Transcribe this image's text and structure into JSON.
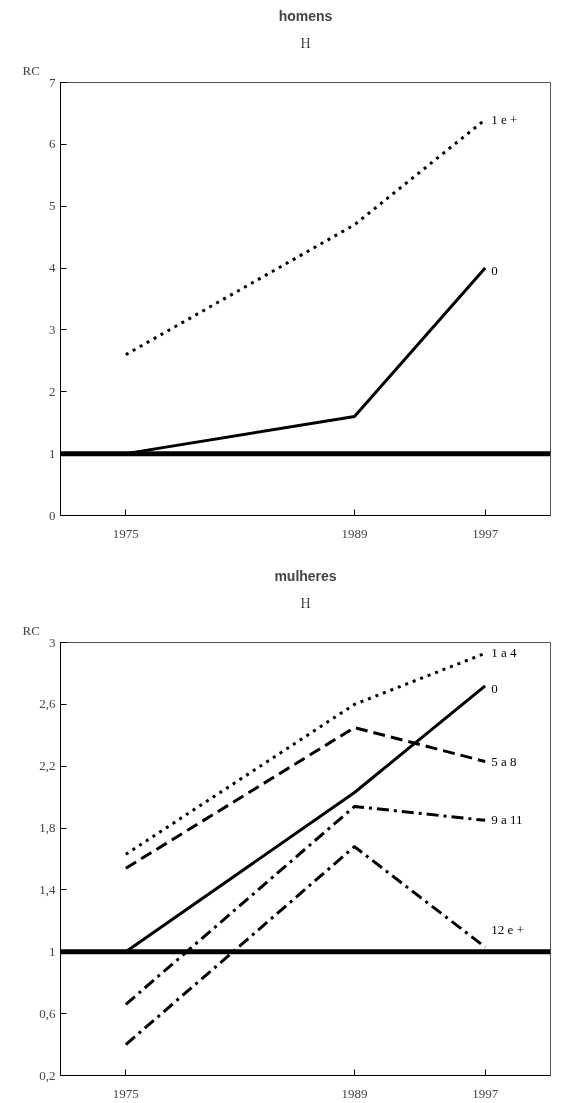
{
  "chart_data": [
    {
      "type": "line",
      "title": "homens",
      "subtitle": "H",
      "ylabel": "RC",
      "x": [
        1975,
        1989,
        1997
      ],
      "xlim": [
        1971,
        2001
      ],
      "xticks": [
        1975,
        1989,
        1997
      ],
      "ylim": [
        0,
        7
      ],
      "yticks": [
        0,
        1,
        2,
        3,
        4,
        5,
        6,
        7
      ],
      "series": [
        {
          "name": "1 e +",
          "color": "#000000",
          "line_style": "dotted",
          "values": [
            2.6,
            4.7,
            6.4
          ]
        },
        {
          "name": "0",
          "color": "#000000",
          "line_style": "solid",
          "values": [
            1.0,
            1.6,
            4.0
          ]
        }
      ],
      "ref_lines": [
        {
          "axis": "y",
          "value": 1,
          "color": "#000000"
        }
      ],
      "grid": false,
      "legend": false,
      "marker": "none"
    },
    {
      "type": "line",
      "title": "mulheres",
      "subtitle": "H",
      "ylabel": "RC",
      "x": [
        1975,
        1989,
        1997
      ],
      "xlim": [
        1971,
        2001
      ],
      "xticks": [
        1975,
        1989,
        1997
      ],
      "ylim": [
        0.2,
        3
      ],
      "yticks": [
        {
          "value": 0.2,
          "label": "0,2"
        },
        {
          "value": 0.6,
          "label": "0,6"
        },
        1,
        {
          "value": 1.4,
          "label": "1,4"
        },
        {
          "value": 1.8,
          "label": "1,8"
        },
        {
          "value": 2.2,
          "label": "2,2"
        },
        {
          "value": 2.6,
          "label": "2,6"
        },
        3
      ],
      "series": [
        {
          "name": "1 a 4",
          "color": "#000000",
          "line_style": "dotted",
          "values": [
            1.63,
            2.6,
            2.93
          ]
        },
        {
          "name": "0",
          "color": "#000000",
          "line_style": "solid",
          "values": [
            1.0,
            2.03,
            2.72
          ]
        },
        {
          "name": "5 a 8",
          "color": "#000000",
          "line_style": "dashed",
          "values": [
            1.54,
            2.45,
            2.23
          ]
        },
        {
          "name": "9 a 11",
          "color": "#000000",
          "line_style": "dashdot",
          "values": [
            0.66,
            1.94,
            1.85
          ]
        },
        {
          "name": "12 e +",
          "color": "#000000",
          "line_style": "dashdot",
          "values": [
            0.4,
            1.68,
            1.03
          ]
        }
      ],
      "ref_lines": [
        {
          "axis": "y",
          "value": 1,
          "color": "#000000"
        }
      ],
      "grid": false,
      "legend": false,
      "marker": "none"
    }
  ]
}
